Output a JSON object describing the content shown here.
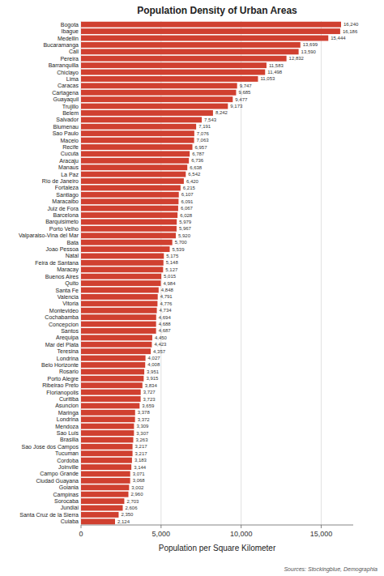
{
  "chart_data": {
    "type": "bar",
    "orientation": "horizontal",
    "title": "Population Density of Urban Areas",
    "x_label": "Population per Square Kilometer",
    "annotation": "Sources: Stockingblue, Demographia",
    "categories": [
      "Bogota",
      "Ibague",
      "Medellin",
      "Bucaramanga",
      "Cali",
      "Pereira",
      "Barranquilla",
      "Chiclayo",
      "Lima",
      "Caracas",
      "Cartagena",
      "Guayaquil",
      "Trujillo",
      "Belem",
      "Salvador",
      "Blumenau",
      "Sao Paulo",
      "Maceio",
      "Recife",
      "Cucuta",
      "Aracaju",
      "Manaus",
      "La Paz",
      "Rio de Janeiro",
      "Fortaleza",
      "Santiago",
      "Maracaibo",
      "Juiz de Fora",
      "Barcelona",
      "Barquisimeto",
      "Porto Velho",
      "Valparaiso-Vina del Mar",
      "Bata",
      "Joao Pessoa",
      "Natal",
      "Feira de Santana",
      "Maracay",
      "Buenos Aires",
      "Quito",
      "Santa Fe",
      "Valencia",
      "Vitoria",
      "Montevideo",
      "Cochabamba",
      "Concepcion",
      "Santos",
      "Arequipa",
      "Mar del Plata",
      "Teresina",
      "Londrina",
      "Belo Horizonte",
      "Rosario",
      "Porto Alegre",
      "Ribeirao Preto",
      "Florianopolis",
      "Curitiba",
      "Asuncion",
      "Maringa",
      "Londrina",
      "Mendoza",
      "Sao Luis",
      "Brasilia",
      "Sao Jose dos Campos",
      "Tucuman",
      "Cordoba",
      "Joinville",
      "Campo Grande",
      "Ciudad Guayana",
      "Goiania",
      "Campinas",
      "Sorocaba",
      "Jundiai",
      "Santa Cruz de la Sierra",
      "Cuiaba"
    ],
    "values": [
      16240,
      16186,
      15444,
      13699,
      13590,
      12832,
      11583,
      11498,
      11053,
      9747,
      9685,
      9477,
      9173,
      8242,
      7543,
      7191,
      7076,
      7063,
      6957,
      6787,
      6736,
      6638,
      6542,
      6420,
      6215,
      6107,
      6091,
      6067,
      6028,
      5979,
      5967,
      5920,
      5700,
      5539,
      5175,
      5148,
      5127,
      5015,
      4984,
      4848,
      4791,
      4776,
      4734,
      4694,
      4688,
      4687,
      4450,
      4423,
      4357,
      4027,
      4008,
      3951,
      3915,
      3834,
      3727,
      3723,
      3659,
      3378,
      3372,
      3309,
      3307,
      3263,
      3217,
      3217,
      3183,
      3144,
      3071,
      3068,
      3002,
      2960,
      2703,
      2606,
      2350,
      2124
    ],
    "value_labels": [
      "16,240",
      "16,186",
      "15,444",
      "13,699",
      "13,590",
      "12,832",
      "11,583",
      "11,498",
      "11,053",
      "9,747",
      "9,685",
      "9,477",
      "9,173",
      "8,242",
      "7,543",
      "7,191",
      "7,076",
      "7,063",
      "6,957",
      "6,787",
      "6,736",
      "6,638",
      "6,542",
      "6,420",
      "6,215",
      "6,107",
      "6,091",
      "6,067",
      "6,028",
      "5,979",
      "5,967",
      "5,920",
      "5,700",
      "5,539",
      "5,175",
      "5,148",
      "5,127",
      "5,015",
      "4,984",
      "4,848",
      "4,791",
      "4,776",
      "4,734",
      "4,694",
      "4,688",
      "4,687",
      "4,450",
      "4,423",
      "4,357",
      "4,027",
      "4,008",
      "3,951",
      "3,915",
      "3,834",
      "3,727",
      "3,723",
      "3,659",
      "3,378",
      "3,372",
      "3,309",
      "3,307",
      "3,263",
      "3,217",
      "3,217",
      "3,183",
      "3,144",
      "3,071",
      "3,068",
      "3,002",
      "2,960",
      "2,703",
      "2,606",
      "2,350",
      "2,124"
    ],
    "data_labels": true,
    "color": "#d04030",
    "xlim": [
      0,
      17000
    ],
    "xticks": [
      0,
      {
        "value": 5000,
        "label": "5,000"
      },
      {
        "value": 10000,
        "label": "10,000"
      },
      {
        "value": 15000,
        "label": "15,000"
      }
    ],
    "grid": true
  }
}
